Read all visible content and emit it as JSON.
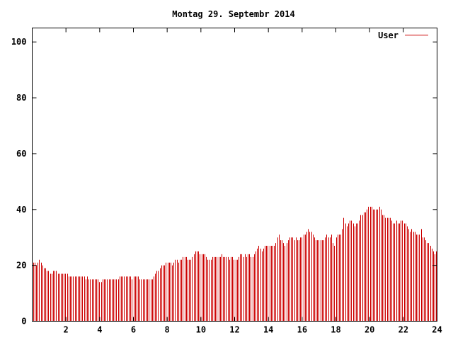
{
  "chart_data": {
    "type": "bar",
    "title": "Montag 29. Septembr 2014",
    "xlabel": "",
    "ylabel": "",
    "xlim": [
      0,
      24
    ],
    "ylim": [
      0,
      105
    ],
    "xticks": [
      2,
      4,
      6,
      8,
      10,
      12,
      14,
      16,
      18,
      20,
      22,
      24
    ],
    "yticks": [
      0,
      20,
      40,
      60,
      80,
      100
    ],
    "grid": false,
    "legend_position": "top-right",
    "series": [
      {
        "name": "User",
        "color": "#cc0000",
        "values": [
          21,
          21,
          20,
          21,
          22,
          21,
          20,
          19,
          19,
          18,
          18,
          17,
          17,
          18,
          18,
          18,
          17,
          17,
          17,
          17,
          17,
          17,
          17,
          16,
          16,
          16,
          16,
          16,
          16,
          16,
          16,
          16,
          16,
          16,
          15,
          16,
          15,
          15,
          15,
          15,
          15,
          15,
          15,
          14,
          14,
          15,
          15,
          15,
          15,
          15,
          15,
          15,
          15,
          15,
          15,
          15,
          16,
          16,
          16,
          16,
          16,
          16,
          16,
          16,
          15,
          16,
          16,
          16,
          16,
          15,
          15,
          15,
          15,
          15,
          15,
          15,
          15,
          15,
          16,
          17,
          18,
          18,
          19,
          20,
          20,
          20,
          21,
          21,
          21,
          21,
          20,
          21,
          22,
          22,
          21,
          22,
          22,
          23,
          23,
          23,
          22,
          22,
          22,
          23,
          24,
          25,
          25,
          25,
          24,
          24,
          24,
          24,
          23,
          22,
          22,
          22,
          23,
          23,
          23,
          23,
          23,
          23,
          24,
          23,
          23,
          23,
          23,
          22,
          23,
          23,
          22,
          22,
          22,
          23,
          24,
          24,
          23,
          24,
          23,
          24,
          24,
          23,
          23,
          24,
          25,
          26,
          27,
          26,
          25,
          26,
          27,
          27,
          27,
          27,
          27,
          27,
          27,
          28,
          30,
          31,
          29,
          29,
          28,
          27,
          28,
          29,
          30,
          30,
          30,
          29,
          30,
          29,
          29,
          30,
          30,
          31,
          31,
          32,
          33,
          32,
          32,
          31,
          30,
          29,
          29,
          29,
          29,
          29,
          29,
          30,
          31,
          30,
          30,
          31,
          28,
          27,
          30,
          31,
          31,
          31,
          33,
          37,
          35,
          34,
          35,
          36,
          36,
          35,
          34,
          35,
          35,
          36,
          38,
          38,
          39,
          39,
          40,
          41,
          41,
          41,
          40,
          40,
          40,
          40,
          41,
          40,
          38,
          38,
          37,
          37,
          37,
          37,
          36,
          35,
          35,
          36,
          35,
          35,
          36,
          36,
          35,
          35,
          34,
          33,
          32,
          33,
          32,
          32,
          31,
          31,
          31,
          33,
          30,
          30,
          29,
          28,
          28,
          27,
          26,
          25,
          24,
          25
        ]
      }
    ]
  }
}
